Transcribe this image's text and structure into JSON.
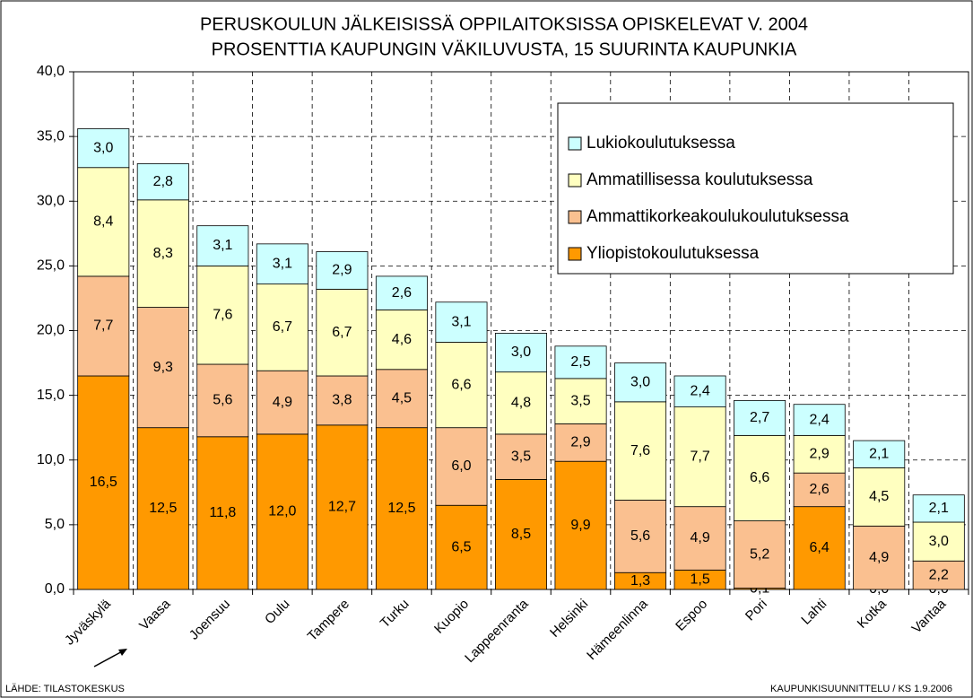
{
  "chart_data": {
    "type": "stacked_bar",
    "title": "PERUSKOULUN JÄLKEISISSÄ OPPILAITOKSISSA OPISKELEVAT V. 2004",
    "subtitle": "PROSENTTIA KAUPUNGIN VÄKILUVUSTA, 15 SUURINTA KAUPUNKIA",
    "categories": [
      "Jyväskylä",
      "Vaasa",
      "Joensuu",
      "Oulu",
      "Tampere",
      "Turku",
      "Kuopio",
      "Lappeenranta",
      "Helsinki",
      "Hämeenlinna",
      "Espoo",
      "Pori",
      "Lahti",
      "Kotka",
      "Vantaa"
    ],
    "series": [
      {
        "name": "Yliopistokoulutuksessa",
        "color": "#ff9900",
        "values": [
          16.5,
          12.5,
          11.8,
          12.0,
          12.7,
          12.5,
          6.5,
          8.5,
          9.9,
          1.3,
          1.5,
          0.1,
          6.4,
          0.0,
          0.0
        ],
        "value_labels": [
          "16,5",
          "12,5",
          "11,8",
          "12,0",
          "12,7",
          "12,5",
          "6,5",
          "8,5",
          "9,9",
          "1,3",
          "1,5",
          "0,1",
          "6,4",
          "0,0",
          "0,0"
        ]
      },
      {
        "name": "Ammattikorkeakoulukoulutuksessa",
        "color": "#fac090",
        "values": [
          7.7,
          9.3,
          5.6,
          4.9,
          3.8,
          4.5,
          6.0,
          3.5,
          2.9,
          5.6,
          4.9,
          5.2,
          2.6,
          4.9,
          2.2
        ],
        "value_labels": [
          "7,7",
          "9,3",
          "5,6",
          "4,9",
          "3,8",
          "4,5",
          "6,0",
          "3,5",
          "2,9",
          "5,6",
          "4,9",
          "5,2",
          "2,6",
          "4,9",
          "2,2"
        ]
      },
      {
        "name": "Ammatillisessa koulutuksessa",
        "color": "#ffffc0",
        "values": [
          8.4,
          8.3,
          7.6,
          6.7,
          6.7,
          4.6,
          6.6,
          4.8,
          3.5,
          7.6,
          7.7,
          6.6,
          2.9,
          4.5,
          3.0
        ],
        "value_labels": [
          "8,4",
          "8,3",
          "7,6",
          "6,7",
          "6,7",
          "4,6",
          "6,6",
          "4,8",
          "3,5",
          "7,6",
          "7,7",
          "6,6",
          "2,9",
          "4,5",
          "3,0"
        ]
      },
      {
        "name": "Lukiokoulutuksessa",
        "color": "#ccffff",
        "values": [
          3.0,
          2.8,
          3.1,
          3.1,
          2.9,
          2.6,
          3.1,
          3.0,
          2.5,
          3.0,
          2.4,
          2.7,
          2.4,
          2.1,
          2.1
        ],
        "value_labels": [
          "3,0",
          "2,8",
          "3,1",
          "3,1",
          "2,9",
          "2,6",
          "3,1",
          "3,0",
          "2,5",
          "3,0",
          "2,4",
          "2,7",
          "2,4",
          "2,1",
          "2,1"
        ]
      }
    ],
    "ylim": [
      0,
      40
    ],
    "yticks": [
      {
        "value": 0,
        "label": "0,0"
      },
      {
        "value": 5,
        "label": "5,0"
      },
      {
        "value": 10,
        "label": "10,0"
      },
      {
        "value": 15,
        "label": "15,0"
      },
      {
        "value": 20,
        "label": "20,0"
      },
      {
        "value": 25,
        "label": "25,0"
      },
      {
        "value": 30,
        "label": "30,0"
      },
      {
        "value": 35,
        "label": "35,0"
      },
      {
        "value": 40,
        "label": "40,0"
      }
    ],
    "grid": true,
    "legend": "upper right",
    "source": "LÄHDE: TILASTOKESKUS",
    "credit": "KAUPUNKISUUNNITTELU / KS 1.9.2006"
  }
}
